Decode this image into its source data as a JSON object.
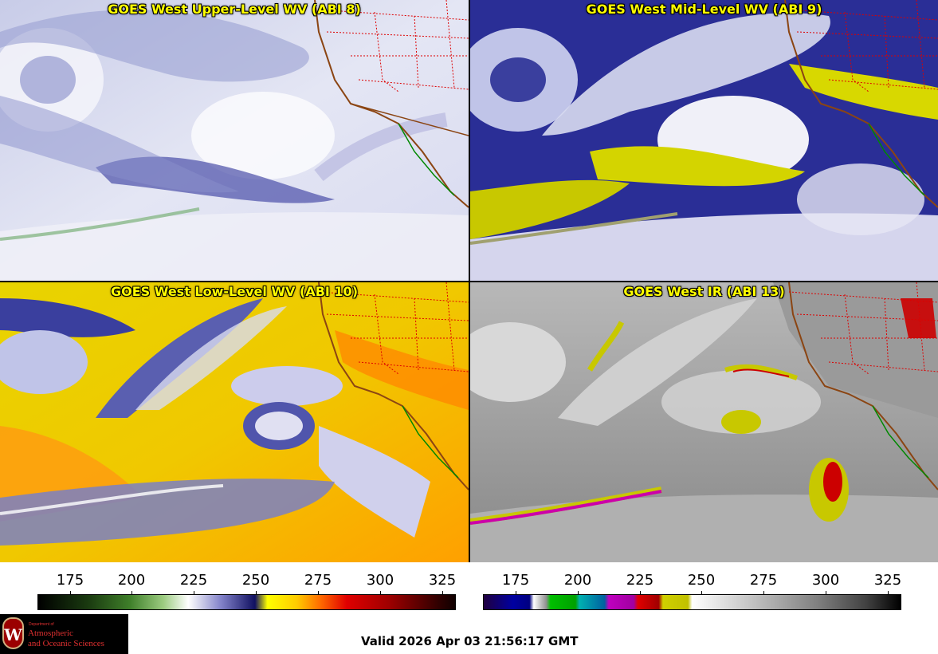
{
  "panels": [
    {
      "title": "GOES West Upper-Level WV (ABI 8)"
    },
    {
      "title": "GOES West Mid-Level WV (ABI 9)"
    },
    {
      "title": "GOES West Low-Level WV (ABI 10)"
    },
    {
      "title": "GOES West IR (ABI 13)"
    }
  ],
  "wv_scale": {
    "ticks": [
      "175",
      "200",
      "225",
      "250",
      "275",
      "300",
      "325"
    ]
  },
  "ir_scale": {
    "ticks": [
      "175",
      "200",
      "225",
      "250",
      "275",
      "300",
      "325"
    ]
  },
  "logo": {
    "dept": "Department of",
    "line1": "Atmospheric",
    "line2": "and Oceanic Sciences",
    "crest": "W"
  },
  "valid_time": "Valid 2026 Apr 03 21:56:17 GMT",
  "colors": {
    "title": "#ffff00",
    "state_border": "#dd0000",
    "coast": "#8b4513",
    "mexico_coast": "#008800"
  }
}
